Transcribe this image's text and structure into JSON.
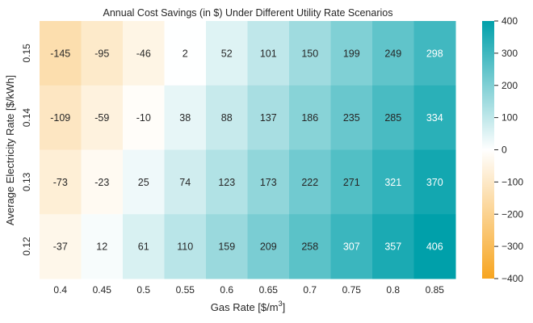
{
  "chart_data": {
    "type": "heatmap",
    "title": "Annual Cost Savings (in $) Under Different Utility Rate Scenarios",
    "xlabel": "Gas Rate [$/m",
    "xlabel_sup": "3",
    "xlabel_end": "]",
    "ylabel": "Average Electricity Rate [$/kWh]",
    "x_categories": [
      "0.4",
      "0.45",
      "0.5",
      "0.55",
      "0.6",
      "0.65",
      "0.7",
      "0.75",
      "0.8",
      "0.85"
    ],
    "y_categories": [
      "0.15",
      "0.14",
      "0.13",
      "0.12"
    ],
    "values": [
      [
        -145,
        -95,
        -46,
        2,
        52,
        101,
        150,
        199,
        249,
        298
      ],
      [
        -109,
        -59,
        -10,
        38,
        88,
        137,
        186,
        235,
        285,
        334
      ],
      [
        -73,
        -23,
        25,
        74,
        123,
        173,
        222,
        271,
        321,
        370
      ],
      [
        -37,
        12,
        61,
        110,
        159,
        209,
        258,
        307,
        357,
        406
      ]
    ],
    "colorbar": {
      "vmin": -400,
      "vmax": 400,
      "ticks": [
        "400",
        "300",
        "200",
        "100",
        "0",
        "−100",
        "−200",
        "−300",
        "−400"
      ],
      "tick_values": [
        400,
        300,
        200,
        100,
        0,
        -100,
        -200,
        -300,
        -400
      ],
      "colors": {
        "low": "#f7a520",
        "mid": "#ffffff",
        "high": "#00a0aa"
      }
    },
    "annotation_colors": {
      "dark": "#262626",
      "light": "#ffffff"
    }
  }
}
